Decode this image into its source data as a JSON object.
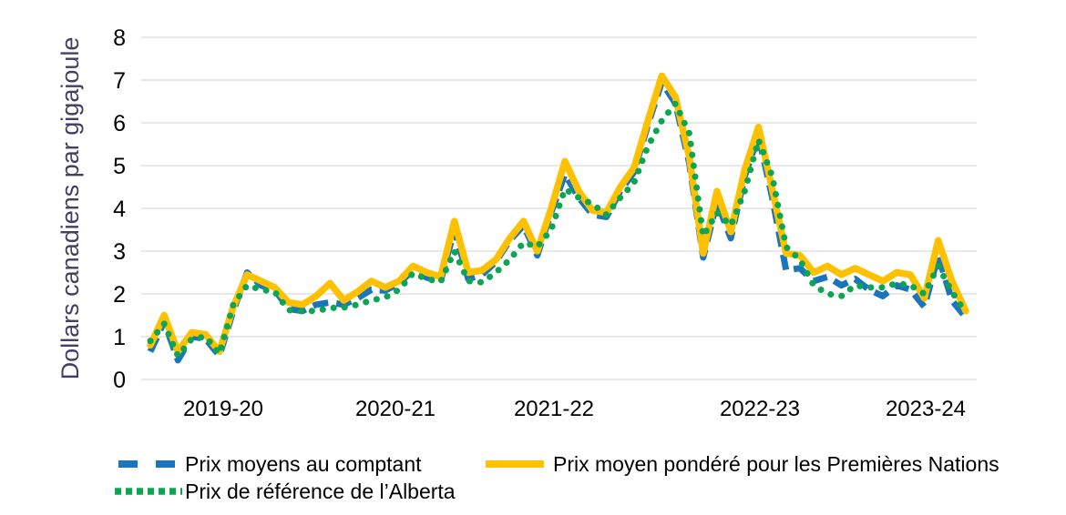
{
  "y_axis": {
    "title": "Dollars canadiens par gigajoule",
    "ticks": [
      0,
      1,
      2,
      3,
      4,
      5,
      6,
      7,
      8
    ]
  },
  "x_axis": {
    "labels": [
      "2019-20",
      "2020-21",
      "2021-22",
      "2022-23",
      "2023-24"
    ]
  },
  "legend": {
    "spot_label": "Prix moyens au comptant",
    "alberta_label": "Prix de référence de l’Alberta",
    "first_nations_label": "Prix moyen pondéré pour les Premières Nations"
  },
  "colors": {
    "spot": "#1B75BC",
    "first_nations": "#FFC000",
    "alberta": "#0CA553",
    "grid": "#D9D9D9",
    "tick_text": "#000000",
    "y_title_text": "#443E66"
  },
  "chart_data": {
    "type": "line",
    "title": "",
    "ylabel": "Dollars canadiens par gigajoule",
    "ylim": [
      0,
      8
    ],
    "grid": "horizontal",
    "legend_position": "bottom",
    "xtick_labels": [
      "2019-20",
      "2020-21",
      "2021-22",
      "2022-23",
      "2023-24"
    ],
    "x": [
      "2019-04",
      "2019-05",
      "2019-06",
      "2019-07",
      "2019-08",
      "2019-09",
      "2019-10",
      "2019-11",
      "2019-12",
      "2020-01",
      "2020-02",
      "2020-03",
      "2020-04",
      "2020-05",
      "2020-06",
      "2020-07",
      "2020-08",
      "2020-09",
      "2020-10",
      "2020-11",
      "2020-12",
      "2021-01",
      "2021-02",
      "2021-03",
      "2021-04",
      "2021-05",
      "2021-06",
      "2021-07",
      "2021-08",
      "2021-09",
      "2021-10",
      "2021-11",
      "2021-12",
      "2022-01",
      "2022-02",
      "2022-03",
      "2022-04",
      "2022-05",
      "2022-06",
      "2022-07",
      "2022-08",
      "2022-09",
      "2022-10",
      "2022-11",
      "2022-12",
      "2023-01",
      "2023-02",
      "2023-03",
      "2023-04",
      "2023-05",
      "2023-06",
      "2023-07",
      "2023-08",
      "2023-09",
      "2023-10",
      "2023-11",
      "2023-12",
      "2024-01",
      "2024-02",
      "2024-03"
    ],
    "series": [
      {
        "id": "spot",
        "name": "Prix moyens au comptant",
        "style": "dashed",
        "values": [
          0.65,
          1.35,
          0.45,
          1.0,
          0.95,
          0.55,
          1.6,
          2.5,
          2.2,
          2.1,
          1.65,
          1.6,
          1.75,
          1.8,
          1.75,
          1.9,
          2.1,
          2.08,
          2.25,
          2.55,
          2.38,
          2.3,
          3.5,
          2.35,
          2.45,
          2.75,
          3.25,
          3.6,
          2.9,
          3.9,
          4.8,
          4.25,
          3.85,
          3.8,
          4.4,
          4.85,
          5.95,
          6.95,
          6.45,
          5.05,
          2.85,
          4.15,
          3.3,
          4.75,
          5.7,
          4.25,
          2.55,
          2.6,
          2.3,
          2.4,
          2.2,
          2.35,
          2.1,
          1.95,
          2.2,
          2.1,
          1.7,
          2.9,
          1.85,
          1.45
        ]
      },
      {
        "id": "first_nations",
        "name": "Prix moyen pondéré pour les Premières Nations",
        "style": "solid",
        "values": [
          0.8,
          1.5,
          0.65,
          1.1,
          1.05,
          0.65,
          1.7,
          2.45,
          2.3,
          2.15,
          1.8,
          1.75,
          1.95,
          2.25,
          1.85,
          2.05,
          2.3,
          2.15,
          2.3,
          2.65,
          2.5,
          2.4,
          3.7,
          2.5,
          2.55,
          2.8,
          3.3,
          3.7,
          3.0,
          4.0,
          5.1,
          4.4,
          3.95,
          3.9,
          4.5,
          4.95,
          6.05,
          7.1,
          6.6,
          5.2,
          2.95,
          4.4,
          3.45,
          4.9,
          5.9,
          4.45,
          2.95,
          2.9,
          2.5,
          2.65,
          2.45,
          2.6,
          2.45,
          2.3,
          2.5,
          2.45,
          1.9,
          3.25,
          2.3,
          1.6
        ]
      },
      {
        "id": "alberta",
        "name": "Prix de référence de l’Alberta",
        "style": "dotted",
        "values": [
          0.9,
          1.3,
          0.55,
          0.95,
          1.0,
          0.6,
          1.75,
          2.2,
          2.1,
          2.05,
          1.62,
          1.6,
          1.6,
          1.67,
          1.68,
          1.75,
          1.85,
          1.92,
          2.1,
          2.48,
          2.35,
          2.28,
          3.0,
          2.3,
          2.27,
          2.5,
          2.8,
          3.2,
          3.1,
          3.5,
          4.45,
          4.25,
          4.1,
          3.85,
          4.25,
          4.6,
          5.45,
          6.05,
          6.45,
          5.75,
          3.35,
          3.9,
          3.6,
          4.4,
          5.6,
          4.75,
          3.1,
          2.8,
          2.2,
          2.0,
          1.95,
          2.2,
          2.15,
          2.15,
          2.25,
          2.2,
          2.0,
          2.65,
          2.05,
          1.55
        ]
      }
    ]
  }
}
